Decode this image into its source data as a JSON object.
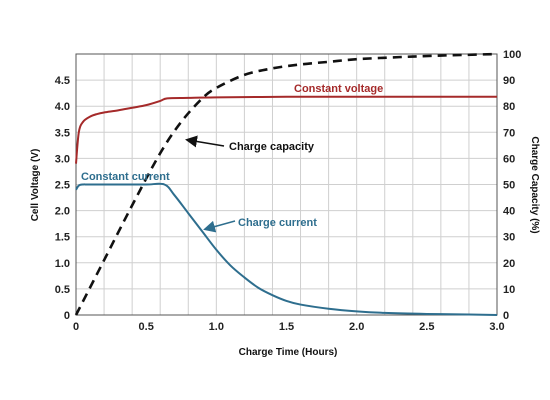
{
  "chart_data": {
    "type": "line",
    "xlabel": "Charge Time (Hours)",
    "ylabel_left": "Cell Voltage (V)",
    "ylabel_right": "Charge Capacity (%)",
    "xlim": [
      0,
      3.0
    ],
    "ylim_left": [
      0,
      5.0
    ],
    "ylim_right": [
      0,
      100
    ],
    "x_ticks": [
      "0",
      "0.5",
      "1.0",
      "1.5",
      "2.0",
      "2.5",
      "3.0"
    ],
    "x_tick_values": [
      0,
      0.5,
      1.0,
      1.5,
      2.0,
      2.5,
      3.0
    ],
    "y_left_ticks": [
      "0",
      "0.5",
      "1.0",
      "1.5",
      "2.0",
      "2.5",
      "3.0",
      "3.5",
      "4.0",
      "4.5"
    ],
    "y_left_tick_values": [
      0,
      0.5,
      1.0,
      1.5,
      2.0,
      2.5,
      3.0,
      3.5,
      4.0,
      4.5
    ],
    "y_right_ticks": [
      "0",
      "10",
      "20",
      "30",
      "40",
      "50",
      "60",
      "70",
      "80",
      "90",
      "100"
    ],
    "y_right_tick_values": [
      0,
      10,
      20,
      30,
      40,
      50,
      60,
      70,
      80,
      90,
      100
    ],
    "grid": true,
    "series": [
      {
        "axis": "left",
        "color": "#a52a2a",
        "style": "solid",
        "x": [
          0,
          0.02,
          0.05,
          0.1,
          0.15,
          0.2,
          0.3,
          0.4,
          0.5,
          0.6,
          0.65,
          0.8,
          1.0,
          1.5,
          2.0,
          2.5,
          3.0
        ],
        "y": [
          2.9,
          3.5,
          3.7,
          3.8,
          3.85,
          3.88,
          3.92,
          3.97,
          4.02,
          4.1,
          4.15,
          4.16,
          4.17,
          4.18,
          4.18,
          4.18,
          4.18
        ]
      },
      {
        "axis": "left",
        "color": "#2e6e8e",
        "style": "solid",
        "x": [
          0,
          0.02,
          0.05,
          0.1,
          0.3,
          0.5,
          0.63,
          0.7,
          0.8,
          0.9,
          1.0,
          1.1,
          1.2,
          1.3,
          1.4,
          1.5,
          1.6,
          1.8,
          2.0,
          2.2,
          2.5,
          2.8,
          3.0
        ],
        "y": [
          2.4,
          2.48,
          2.5,
          2.5,
          2.5,
          2.5,
          2.5,
          2.3,
          1.95,
          1.6,
          1.25,
          0.95,
          0.72,
          0.52,
          0.38,
          0.27,
          0.2,
          0.12,
          0.07,
          0.04,
          0.02,
          0.01,
          0.0
        ]
      },
      {
        "axis": "right",
        "color": "#111111",
        "style": "dashed",
        "x": [
          0,
          0.2,
          0.4,
          0.6,
          0.75,
          0.9,
          1.0,
          1.2,
          1.4,
          1.6,
          1.8,
          2.0,
          2.3,
          2.6,
          3.0
        ],
        "y": [
          0,
          21,
          42,
          62,
          74,
          83,
          87,
          92,
          94.5,
          96,
          97,
          98,
          98.8,
          99.4,
          100
        ]
      }
    ],
    "annotations": [
      {
        "text": "Constant voltage",
        "color": "#a52a2a"
      },
      {
        "text": "Charge capacity",
        "color": "#111111"
      },
      {
        "text": "Constant current",
        "color": "#2e6e8e"
      },
      {
        "text": "Charge current",
        "color": "#2e6e8e"
      }
    ]
  }
}
